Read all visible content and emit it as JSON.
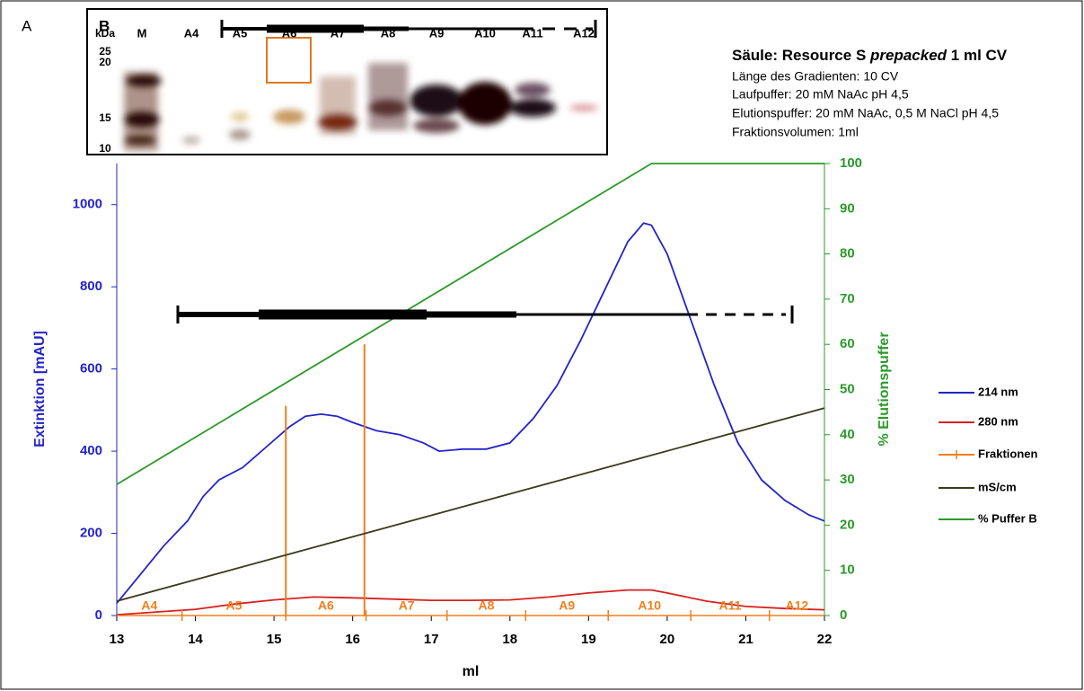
{
  "figure": {
    "panel_a": "A",
    "panel_b": "B"
  },
  "gel": {
    "kda_label": "kDa",
    "lanes": [
      "M",
      "A4",
      "A5",
      "A6",
      "A7",
      "A8",
      "A9",
      "A10",
      "A11",
      "A12"
    ],
    "markers": [
      "25",
      "20",
      "15",
      "10"
    ]
  },
  "info": {
    "title": [
      "Säule: Resource S ",
      "prepacked",
      " 1 ml CV"
    ],
    "lines": [
      "Länge des Gradienten: 10 CV",
      "Laufpuffer: 20 mM NaAc pH 4,5",
      "Elutionspuffer: 20 mM NaAc, 0,5 M NaCl pH 4,5",
      "Fraktionsvolumen: 1ml"
    ]
  },
  "chart_data": {
    "type": "line",
    "xlabel": "ml",
    "ylabel": "Extinktion [mAU]",
    "y2label": "% Elutionspuffer",
    "xlim": [
      13,
      22
    ],
    "xticks": [
      13,
      14,
      15,
      16,
      17,
      18,
      19,
      20,
      21,
      22
    ],
    "ylim": [
      0,
      1100
    ],
    "yticks": [
      0,
      200,
      400,
      600,
      800,
      1000
    ],
    "y2lim": [
      0,
      100
    ],
    "y2ticks": [
      0,
      10,
      20,
      30,
      40,
      50,
      60,
      70,
      80,
      90,
      100
    ],
    "series": [
      {
        "name": "214 nm",
        "color": "#2424c8",
        "x": [
          13,
          13.3,
          13.6,
          13.9,
          14.1,
          14.3,
          14.6,
          14.9,
          15.2,
          15.4,
          15.6,
          15.8,
          16.0,
          16.3,
          16.6,
          16.9,
          17.1,
          17.4,
          17.7,
          18.0,
          18.3,
          18.6,
          18.9,
          19.2,
          19.5,
          19.7,
          19.8,
          20.0,
          20.3,
          20.6,
          20.9,
          21.2,
          21.5,
          21.8,
          22
        ],
        "values": [
          30,
          100,
          170,
          230,
          290,
          330,
          360,
          410,
          460,
          485,
          490,
          485,
          470,
          450,
          440,
          420,
          400,
          405,
          405,
          420,
          480,
          560,
          670,
          790,
          910,
          955,
          950,
          880,
          720,
          560,
          420,
          330,
          280,
          245,
          230
        ]
      },
      {
        "name": "280 nm",
        "color": "#d82020",
        "x": [
          13,
          14,
          14.5,
          15,
          15.5,
          16,
          16.5,
          17,
          17.5,
          18,
          18.5,
          19,
          19.5,
          19.8,
          20,
          20.5,
          21,
          21.5,
          22
        ],
        "values": [
          2,
          15,
          28,
          38,
          45,
          43,
          40,
          37,
          37,
          38,
          45,
          55,
          62,
          62,
          55,
          35,
          22,
          17,
          14
        ]
      },
      {
        "name": "Fraktionen",
        "color": "#f07f1e",
        "x": [
          13.83,
          15.15,
          16.17,
          17.2,
          18.2,
          19.25,
          20.3,
          21.3
        ],
        "values": [
          0,
          0,
          0,
          0,
          0,
          0,
          0,
          0
        ],
        "labels": [
          "A4",
          "A5",
          "A6",
          "A7",
          "A8",
          "A9",
          "A10",
          "A11",
          "A12"
        ],
        "marker_x": [
          15.15,
          16.15
        ],
        "marker_values": [
          510,
          660
        ]
      },
      {
        "name": "mS/cm",
        "color": "#3a3a1c",
        "x": [
          13,
          22
        ],
        "values": [
          35,
          505
        ]
      },
      {
        "name": "% Puffer B",
        "color": "#2a9a2a",
        "axis": "y2",
        "x": [
          13,
          19.8,
          22
        ],
        "values": [
          29,
          100,
          100
        ]
      }
    ]
  }
}
